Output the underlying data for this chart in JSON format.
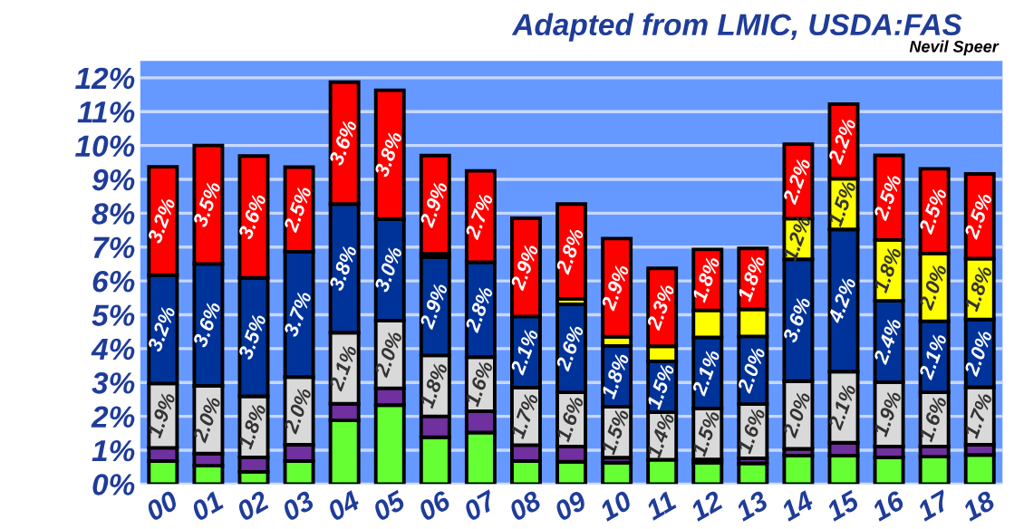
{
  "chart_data": {
    "type": "bar",
    "stacked": true,
    "title": "Adapted from LMIC, USDA:FAS",
    "annotations": [
      "Nevil Speer"
    ],
    "categories": [
      "00",
      "01",
      "02",
      "03",
      "04",
      "05",
      "06",
      "07",
      "08",
      "09",
      "10",
      "11",
      "12",
      "13",
      "14",
      "15",
      "16",
      "17",
      "18"
    ],
    "series": [
      {
        "color": "#66ff33",
        "values": [
          0.68,
          0.54,
          0.36,
          0.68,
          1.88,
          2.33,
          1.38,
          1.52,
          0.68,
          0.66,
          0.63,
          0.72,
          0.63,
          0.61,
          0.84,
          0.84,
          0.79,
          0.81,
          0.86
        ]
      },
      {
        "color": "#7030a0",
        "values": [
          0.39,
          0.36,
          0.43,
          0.48,
          0.49,
          0.5,
          0.62,
          0.63,
          0.47,
          0.45,
          0.15,
          null,
          0.1,
          0.15,
          0.2,
          0.38,
          0.32,
          0.3,
          0.3
        ]
      },
      {
        "color": "#d9d9d9",
        "values": [
          1.9,
          2.0,
          1.8,
          2.0,
          2.1,
          2.0,
          1.8,
          1.6,
          1.7,
          1.6,
          1.5,
          1.4,
          1.5,
          1.6,
          2.0,
          2.1,
          1.9,
          1.6,
          1.7
        ],
        "value_labels": [
          "1.9%",
          "2.0%",
          "1.8%",
          "2.0%",
          "2.1%",
          "2.0%",
          "1.8%",
          "1.6%",
          "1.7%",
          "1.6%",
          "1.5%",
          "1.4%",
          "1.5%",
          "1.6%",
          "2.0%",
          "2.1%",
          "1.9%",
          "1.6%",
          "1.7%"
        ]
      },
      {
        "color": "#003399",
        "values": [
          3.2,
          3.6,
          3.5,
          3.7,
          3.8,
          3.0,
          2.9,
          2.8,
          2.1,
          2.6,
          1.8,
          1.5,
          2.1,
          2.0,
          3.6,
          4.2,
          2.4,
          2.1,
          2.0
        ],
        "value_labels": [
          "3.2%",
          "3.6%",
          "3.5%",
          "3.7%",
          "3.8%",
          "3.0%",
          "2.9%",
          "2.8%",
          "2.1%",
          "2.6%",
          "1.8%",
          "1.5%",
          "2.1%",
          "2.0%",
          "3.6%",
          "4.2%",
          "2.4%",
          "2.1%",
          "2.0%"
        ]
      },
      {
        "color": "#ffff00",
        "values": [
          null,
          null,
          null,
          null,
          null,
          null,
          0.1,
          null,
          null,
          0.16,
          0.27,
          0.45,
          0.8,
          0.8,
          1.2,
          1.5,
          1.8,
          2.0,
          1.8
        ],
        "value_labels": [
          null,
          null,
          null,
          null,
          null,
          null,
          null,
          null,
          null,
          null,
          null,
          null,
          null,
          null,
          "1.2%",
          "1.5%",
          "1.8%",
          "2.0%",
          "1.8%"
        ]
      },
      {
        "color": "#ff0000",
        "values": [
          3.2,
          3.5,
          3.6,
          2.5,
          3.6,
          3.8,
          2.9,
          2.7,
          2.9,
          2.8,
          2.9,
          2.3,
          1.8,
          1.8,
          2.2,
          2.2,
          2.5,
          2.5,
          2.5
        ],
        "value_labels": [
          "3.2%",
          "3.5%",
          "3.6%",
          "2.5%",
          "3.6%",
          "3.8%",
          "2.9%",
          "2.7%",
          "2.9%",
          "2.8%",
          "2.9%",
          "2.3%",
          "1.8%",
          "1.8%",
          "2.2%",
          "2.2%",
          "2.5%",
          "2.5%",
          "2.5%"
        ]
      }
    ],
    "ylim": [
      0,
      12.5
    ],
    "yticks": [
      {
        "value": 0,
        "label": "0%"
      },
      {
        "value": 1,
        "label": "1%"
      },
      {
        "value": 2,
        "label": "2%"
      },
      {
        "value": 3,
        "label": "3%"
      },
      {
        "value": 4,
        "label": "4%"
      },
      {
        "value": 5,
        "label": "5%"
      },
      {
        "value": 6,
        "label": "6%"
      },
      {
        "value": 7,
        "label": "7%"
      },
      {
        "value": 8,
        "label": "8%"
      },
      {
        "value": 9,
        "label": "9%"
      },
      {
        "value": 10,
        "label": "10%"
      },
      {
        "value": 11,
        "label": "11%"
      },
      {
        "value": 12,
        "label": "12%"
      }
    ],
    "grid": "y",
    "legend": false
  }
}
